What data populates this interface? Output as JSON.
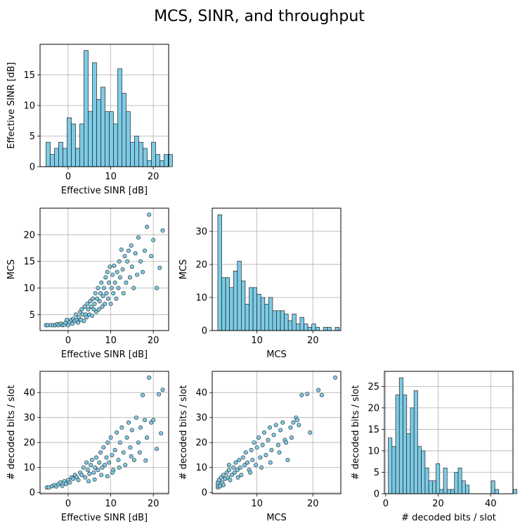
{
  "figure": {
    "title": "MCS, SINR, and throughput"
  },
  "colors": {
    "fill": "#7ccbe6",
    "edge": "#222222",
    "grid": "#b0b0b0"
  },
  "chart_data": [
    {
      "id": "sinr_hist",
      "type": "bar",
      "xlabel": "Effective SINR [dB]",
      "ylabel": "Effective SINR [dB]",
      "xlim": [
        -6.6,
        23.6
      ],
      "ylim": [
        0,
        20
      ],
      "xticks": [
        0,
        10,
        20
      ],
      "yticks": [
        0,
        5,
        10,
        15
      ],
      "bin_start": -5.2,
      "bin_width": 0.99,
      "values": [
        4,
        2,
        3,
        4,
        3,
        8,
        7,
        3,
        7,
        19,
        9,
        17,
        11,
        13,
        9,
        9,
        7,
        16,
        12,
        9,
        4,
        5,
        4,
        3,
        1,
        4,
        2,
        1,
        2,
        2
      ],
      "grid": true
    },
    {
      "id": "mcs_vs_sinr",
      "type": "scatter",
      "xlabel": "Effective SINR [dB]",
      "ylabel": "MCS",
      "xlim": [
        -6.6,
        23.6
      ],
      "ylim": [
        2,
        25
      ],
      "xticks": [
        0,
        10,
        20
      ],
      "yticks": [
        5,
        10,
        15,
        20
      ],
      "points": [
        [
          -5.2,
          3
        ],
        [
          -4.8,
          3
        ],
        [
          -4.1,
          3
        ],
        [
          -3.5,
          3
        ],
        [
          -3,
          3
        ],
        [
          -2.6,
          3.2
        ],
        [
          -2.2,
          3
        ],
        [
          -1.7,
          3.3
        ],
        [
          -1.3,
          3
        ],
        [
          -0.9,
          3.1
        ],
        [
          -0.6,
          3.5
        ],
        [
          -0.3,
          4
        ],
        [
          0,
          3
        ],
        [
          0.3,
          3.6
        ],
        [
          0.7,
          4
        ],
        [
          1,
          3.3
        ],
        [
          1.2,
          4.2
        ],
        [
          1.5,
          3.8
        ],
        [
          1.8,
          5
        ],
        [
          2,
          4
        ],
        [
          2.3,
          3.5
        ],
        [
          2.5,
          4.5
        ],
        [
          2.8,
          5.5
        ],
        [
          3,
          4
        ],
        [
          3.2,
          6
        ],
        [
          3.4,
          5
        ],
        [
          3.7,
          3.8
        ],
        [
          3.9,
          6.5
        ],
        [
          4.1,
          5
        ],
        [
          4.3,
          4.5
        ],
        [
          4.5,
          7
        ],
        [
          4.7,
          6
        ],
        [
          5,
          5
        ],
        [
          5.2,
          7.5
        ],
        [
          5.4,
          6.5
        ],
        [
          5.6,
          4.8
        ],
        [
          5.8,
          8
        ],
        [
          6,
          6
        ],
        [
          6.2,
          7
        ],
        [
          6.4,
          9
        ],
        [
          6.6,
          5.5
        ],
        [
          6.8,
          8
        ],
        [
          7,
          10
        ],
        [
          7.2,
          6
        ],
        [
          7.4,
          7.5
        ],
        [
          7.6,
          9
        ],
        [
          7.8,
          11
        ],
        [
          8,
          6.5
        ],
        [
          8.2,
          8.5
        ],
        [
          8.4,
          10
        ],
        [
          8.6,
          7
        ],
        [
          8.8,
          12
        ],
        [
          9,
          9
        ],
        [
          9.2,
          13
        ],
        [
          9.4,
          8
        ],
        [
          9.6,
          11
        ],
        [
          9.8,
          14
        ],
        [
          10,
          7
        ],
        [
          10.2,
          10
        ],
        [
          10.4,
          12.5
        ],
        [
          10.6,
          9
        ],
        [
          10.8,
          14.2
        ],
        [
          11,
          11
        ],
        [
          11.3,
          8
        ],
        [
          11.5,
          13
        ],
        [
          11.8,
          10
        ],
        [
          12,
          15
        ],
        [
          12.2,
          12
        ],
        [
          12.5,
          17.2
        ],
        [
          12.8,
          13.5
        ],
        [
          13,
          9
        ],
        [
          13.3,
          16
        ],
        [
          13.6,
          11
        ],
        [
          13.9,
          15
        ],
        [
          14.2,
          17
        ],
        [
          14.5,
          12
        ],
        [
          14.8,
          18
        ],
        [
          15,
          14
        ],
        [
          15.4,
          10
        ],
        [
          15.8,
          16.5
        ],
        [
          16.2,
          12.5
        ],
        [
          16.5,
          19.5
        ],
        [
          17,
          15
        ],
        [
          17.5,
          13
        ],
        [
          18,
          17
        ],
        [
          18.5,
          21.5
        ],
        [
          19,
          23.8
        ],
        [
          19.5,
          16
        ],
        [
          20,
          19
        ],
        [
          20.8,
          10
        ],
        [
          21.5,
          13.8
        ],
        [
          22.2,
          20.8
        ]
      ],
      "grid": true
    },
    {
      "id": "mcs_hist",
      "type": "bar",
      "xlabel": "MCS",
      "ylabel": "MCS",
      "xlim": [
        2,
        25
      ],
      "ylim": [
        0,
        37
      ],
      "xticks": [
        10,
        20
      ],
      "yticks": [
        0,
        10,
        20,
        30
      ],
      "bin_start": 3,
      "bin_width": 0.7,
      "values": [
        35,
        16,
        16,
        13,
        18,
        21,
        15,
        8,
        13,
        13,
        11,
        10,
        8,
        10,
        6,
        6,
        6,
        5,
        3,
        5,
        2,
        4,
        2,
        1,
        2,
        1,
        0,
        1,
        1,
        0,
        1
      ],
      "grid": true
    },
    {
      "id": "bits_vs_sinr",
      "type": "scatter",
      "xlabel": "Effective SINR [dB]",
      "ylabel": "# decoded bits / slot",
      "xlim": [
        -6.6,
        23.6
      ],
      "ylim": [
        -0.5,
        48.5
      ],
      "xticks": [
        0,
        10,
        20
      ],
      "yticks": [
        0,
        10,
        20,
        30,
        40
      ],
      "points": [
        [
          -5,
          2
        ],
        [
          -4.5,
          2
        ],
        [
          -3.8,
          2.5
        ],
        [
          -3.2,
          3
        ],
        [
          -2.8,
          2.4
        ],
        [
          -2.3,
          3.3
        ],
        [
          -1.8,
          4
        ],
        [
          -1.4,
          2.7
        ],
        [
          -0.9,
          4.5
        ],
        [
          -0.5,
          3.4
        ],
        [
          0,
          5
        ],
        [
          0.4,
          4
        ],
        [
          0.8,
          6
        ],
        [
          1.2,
          5.5
        ],
        [
          1.6,
          7
        ],
        [
          2,
          6.2
        ],
        [
          2.4,
          5
        ],
        [
          2.8,
          8
        ],
        [
          3.2,
          7
        ],
        [
          3.6,
          10
        ],
        [
          4,
          6
        ],
        [
          4.3,
          12
        ],
        [
          4.6,
          9
        ],
        [
          5,
          7.5
        ],
        [
          5.3,
          11
        ],
        [
          5.6,
          13
        ],
        [
          6,
          8
        ],
        [
          6.3,
          10
        ],
        [
          6.6,
          14
        ],
        [
          7,
          9
        ],
        [
          7.3,
          12
        ],
        [
          7.6,
          16
        ],
        [
          8,
          10
        ],
        [
          8.3,
          18
        ],
        [
          8.6,
          11
        ],
        [
          9,
          14
        ],
        [
          9.3,
          20
        ],
        [
          9.6,
          12
        ],
        [
          10,
          22
        ],
        [
          10.3,
          15
        ],
        [
          10.6,
          9
        ],
        [
          11,
          17
        ],
        [
          11.4,
          24
        ],
        [
          11.8,
          13
        ],
        [
          12.2,
          20
        ],
        [
          12.6,
          26
        ],
        [
          13,
          16
        ],
        [
          13.4,
          11
        ],
        [
          13.8,
          22
        ],
        [
          14.2,
          28
        ],
        [
          14.6,
          18
        ],
        [
          15,
          25
        ],
        [
          15.5,
          13
        ],
        [
          16,
          30
        ],
        [
          16.5,
          20
        ],
        [
          17,
          26
        ],
        [
          17.5,
          39
        ],
        [
          18,
          29
        ],
        [
          18.5,
          22
        ],
        [
          19,
          46
        ],
        [
          19.5,
          28
        ],
        [
          20,
          29
        ],
        [
          20.8,
          17.5
        ],
        [
          21.3,
          39.3
        ],
        [
          21.8,
          23.7
        ],
        [
          22.2,
          41.1
        ],
        [
          9.2,
          6.5
        ],
        [
          7.8,
          7
        ],
        [
          6.2,
          5.2
        ],
        [
          4.8,
          4.5
        ],
        [
          10.4,
          8
        ],
        [
          12,
          10
        ],
        [
          14.8,
          14.5
        ],
        [
          16.8,
          16
        ],
        [
          18.2,
          12.8
        ]
      ],
      "grid": true
    },
    {
      "id": "bits_vs_mcs",
      "type": "scatter",
      "xlabel": "MCS",
      "ylabel": "# decoded bits / slot",
      "xlim": [
        2,
        25
      ],
      "ylim": [
        -0.5,
        48.5
      ],
      "xticks": [
        10,
        20
      ],
      "yticks": [
        0,
        10,
        20,
        30,
        40
      ],
      "points": [
        [
          3,
          2
        ],
        [
          3,
          3
        ],
        [
          3,
          4
        ],
        [
          3.2,
          5
        ],
        [
          3.4,
          2.5
        ],
        [
          3.6,
          6
        ],
        [
          3.8,
          4
        ],
        [
          4,
          7
        ],
        [
          4,
          3
        ],
        [
          4.3,
          5.5
        ],
        [
          4.6,
          8
        ],
        [
          4.8,
          6
        ],
        [
          5,
          9
        ],
        [
          5.2,
          5
        ],
        [
          5.5,
          7
        ],
        [
          5.8,
          10
        ],
        [
          6,
          8
        ],
        [
          6.2,
          12
        ],
        [
          6.5,
          9
        ],
        [
          6.8,
          13
        ],
        [
          7,
          10
        ],
        [
          7.2,
          7
        ],
        [
          7.5,
          14
        ],
        [
          7.8,
          11
        ],
        [
          8,
          16
        ],
        [
          8.3,
          12
        ],
        [
          8.6,
          9
        ],
        [
          9,
          17
        ],
        [
          9.2,
          13
        ],
        [
          9.5,
          20
        ],
        [
          9.8,
          11
        ],
        [
          10,
          18
        ],
        [
          10.3,
          22
        ],
        [
          10.6,
          14
        ],
        [
          11,
          19
        ],
        [
          11.3,
          24
        ],
        [
          11.6,
          15
        ],
        [
          12,
          21
        ],
        [
          12.3,
          26
        ],
        [
          12.6,
          17
        ],
        [
          13,
          23
        ],
        [
          13.4,
          27
        ],
        [
          13.8,
          19
        ],
        [
          14.2,
          25
        ],
        [
          14.6,
          28
        ],
        [
          15,
          21
        ],
        [
          15.5,
          13
        ],
        [
          16,
          26
        ],
        [
          16.5,
          28
        ],
        [
          17,
          30
        ],
        [
          17.5,
          27
        ],
        [
          18,
          39
        ],
        [
          19,
          39.5
        ],
        [
          19.5,
          24
        ],
        [
          21,
          41
        ],
        [
          21.6,
          39
        ],
        [
          24,
          46
        ],
        [
          5,
          11
        ],
        [
          6.6,
          6
        ],
        [
          8.8,
          8
        ],
        [
          10.8,
          10
        ],
        [
          12.4,
          12
        ],
        [
          14,
          16
        ],
        [
          15.2,
          20
        ],
        [
          16.2,
          22
        ],
        [
          17.2,
          29
        ]
      ],
      "grid": true
    },
    {
      "id": "bits_hist",
      "type": "bar",
      "xlabel": "# decoded bits / slot",
      "ylabel": "# decoded bits / slot",
      "xlim": [
        -0.5,
        48.5
      ],
      "ylim": [
        0,
        28.5
      ],
      "xticks": [
        0,
        20,
        40
      ],
      "yticks": [
        0,
        5,
        10,
        15,
        20,
        25
      ],
      "bin_start": 1,
      "bin_width": 1.4,
      "values": [
        13,
        11,
        23,
        27,
        23,
        14,
        20,
        24,
        11,
        10,
        6,
        3,
        3,
        7,
        1,
        6,
        1,
        1,
        5,
        6,
        3,
        2,
        0,
        0,
        0,
        0,
        0,
        0,
        3,
        1,
        0,
        0,
        0,
        0,
        1
      ],
      "grid": true
    }
  ]
}
